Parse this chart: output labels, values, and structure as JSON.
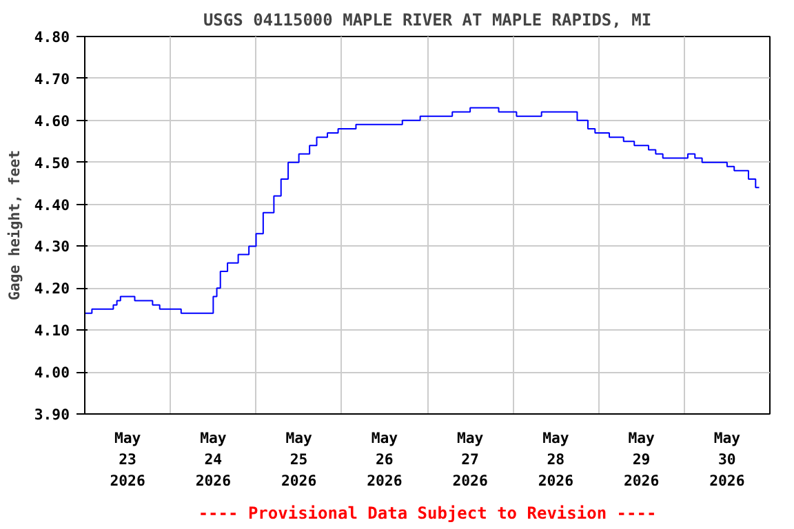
{
  "chart_data": {
    "type": "step",
    "title": "USGS 04115000 MAPLE RIVER AT MAPLE RAPIDS, MI",
    "ylabel": "Gage height, feet",
    "annotations": [
      "---- Provisional Data Subject to Revision ----"
    ],
    "x": [
      "2026-05-23T00:00",
      "2026-05-23T02:00",
      "2026-05-23T07:00",
      "2026-05-23T08:00",
      "2026-05-23T09:00",
      "2026-05-23T10:00",
      "2026-05-23T13:00",
      "2026-05-23T14:00",
      "2026-05-23T18:00",
      "2026-05-23T19:00",
      "2026-05-23T21:00",
      "2026-05-24T02:00",
      "2026-05-24T03:00",
      "2026-05-24T11:00",
      "2026-05-24T12:00",
      "2026-05-24T13:00",
      "2026-05-24T14:00",
      "2026-05-24T16:00",
      "2026-05-24T19:00",
      "2026-05-24T22:00",
      "2026-05-25T00:00",
      "2026-05-25T02:00",
      "2026-05-25T05:00",
      "2026-05-25T07:00",
      "2026-05-25T09:00",
      "2026-05-25T12:00",
      "2026-05-25T15:00",
      "2026-05-25T17:00",
      "2026-05-25T20:00",
      "2026-05-25T23:00",
      "2026-05-26T04:00",
      "2026-05-26T17:00",
      "2026-05-26T22:00",
      "2026-05-27T07:00",
      "2026-05-27T12:00",
      "2026-05-27T19:00",
      "2026-05-27T20:00",
      "2026-05-28T00:00",
      "2026-05-28T01:00",
      "2026-05-28T07:00",
      "2026-05-28T08:00",
      "2026-05-28T16:00",
      "2026-05-28T18:00",
      "2026-05-28T21:00",
      "2026-05-28T23:00",
      "2026-05-29T03:00",
      "2026-05-29T07:00",
      "2026-05-29T10:00",
      "2026-05-29T14:00",
      "2026-05-29T16:00",
      "2026-05-29T18:00",
      "2026-05-30T00:00",
      "2026-05-30T01:00",
      "2026-05-30T03:00",
      "2026-05-30T05:00",
      "2026-05-30T10:00",
      "2026-05-30T12:00",
      "2026-05-30T14:00",
      "2026-05-30T18:00",
      "2026-05-30T20:00",
      "2026-05-30T21:00"
    ],
    "series": [
      {
        "color": "#0000ff",
        "values": [
          4.14,
          4.15,
          4.15,
          4.16,
          4.17,
          4.18,
          4.18,
          4.17,
          4.17,
          4.16,
          4.15,
          4.15,
          4.14,
          4.14,
          4.18,
          4.2,
          4.24,
          4.26,
          4.28,
          4.3,
          4.33,
          4.38,
          4.42,
          4.46,
          4.5,
          4.52,
          4.54,
          4.56,
          4.57,
          4.58,
          4.59,
          4.6,
          4.61,
          4.62,
          4.63,
          4.63,
          4.62,
          4.62,
          4.61,
          4.61,
          4.62,
          4.62,
          4.6,
          4.58,
          4.57,
          4.56,
          4.55,
          4.54,
          4.53,
          4.52,
          4.51,
          4.51,
          4.52,
          4.51,
          4.5,
          4.5,
          4.49,
          4.48,
          4.46,
          4.44,
          4.44
        ]
      }
    ],
    "xlim": [
      "2026-05-23T00:00",
      "2026-05-31T00:00"
    ],
    "xticks": [
      {
        "value": "2026-05-23T00:00",
        "label": null
      },
      {
        "value": "2026-05-23T12:00",
        "label": "May\n23\n2026"
      },
      {
        "value": "2026-05-24T00:00",
        "label": null
      },
      {
        "value": "2026-05-24T12:00",
        "label": "May\n24\n2026"
      },
      {
        "value": "2026-05-25T00:00",
        "label": null
      },
      {
        "value": "2026-05-25T12:00",
        "label": "May\n25\n2026"
      },
      {
        "value": "2026-05-26T00:00",
        "label": null
      },
      {
        "value": "2026-05-26T12:00",
        "label": "May\n26\n2026"
      },
      {
        "value": "2026-05-27T00:00",
        "label": null
      },
      {
        "value": "2026-05-27T12:00",
        "label": "May\n27\n2026"
      },
      {
        "value": "2026-05-28T00:00",
        "label": null
      },
      {
        "value": "2026-05-28T12:00",
        "label": "May\n28\n2026"
      },
      {
        "value": "2026-05-29T00:00",
        "label": null
      },
      {
        "value": "2026-05-29T12:00",
        "label": "May\n29\n2026"
      },
      {
        "value": "2026-05-30T00:00",
        "label": null
      },
      {
        "value": "2026-05-30T12:00",
        "label": "May\n30\n2026"
      },
      {
        "value": "2026-05-31T00:00",
        "label": null
      }
    ],
    "ylim": [
      3.9,
      4.8
    ],
    "yticks": [
      {
        "value": 3.9,
        "label": "3.90"
      },
      {
        "value": 4.0,
        "label": "4.00"
      },
      {
        "value": 4.1,
        "label": "4.10"
      },
      {
        "value": 4.2,
        "label": "4.20"
      },
      {
        "value": 4.3,
        "label": "4.30"
      },
      {
        "value": 4.4,
        "label": "4.40"
      },
      {
        "value": 4.5,
        "label": "4.50"
      },
      {
        "value": 4.6,
        "label": "4.60"
      },
      {
        "value": 4.7,
        "label": "4.70"
      },
      {
        "value": 4.8,
        "label": "4.80"
      }
    ],
    "grid": true
  }
}
